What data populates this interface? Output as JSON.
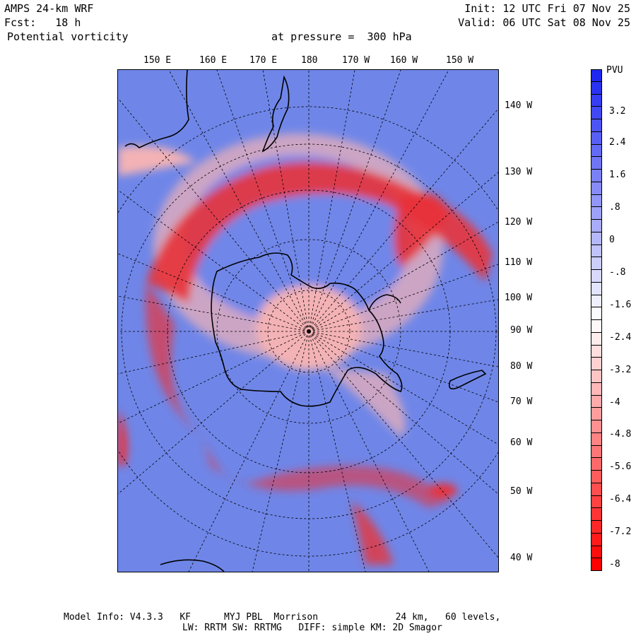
{
  "header": {
    "model": "AMPS 24-km WRF",
    "fcst": "Fcst:   18 h",
    "field": "Potential vorticity",
    "level": "at pressure =  300 hPa",
    "init": "Init: 12 UTC Fri 07 Nov 25",
    "valid": "Valid: 06 UTC Sat 08 Nov 25"
  },
  "top_lon_labels": [
    "150 E",
    "160 E",
    "170 E",
    "180",
    "170 W",
    "160 W",
    "150 W"
  ],
  "right_lon_labels": [
    "140 W",
    "130 W",
    "120 W",
    "110 W",
    "100 W",
    "90 W",
    "80 W",
    "70 W",
    "60 W",
    "50 W",
    "40 W"
  ],
  "colorbar": {
    "unit": "PVU",
    "ticks": [
      "3.2",
      "2.4",
      "1.6",
      ".8",
      "0",
      "-.8",
      "-1.6",
      "-2.4",
      "-3.2",
      "-4",
      "-4.8",
      "-5.6",
      "-6.4",
      "-7.2",
      "-8"
    ],
    "top_color": "#1f2bf0",
    "bottom_color": "#ff0000"
  },
  "footer": {
    "line1": "Model Info: V4.3.3   KF      MYJ PBL  Morrison              24 km,   60 levels,",
    "line2": "LW: RRTM SW: RRTMG   DIFF: simple KM: 2D Smagor"
  },
  "colors": {
    "ocean_bg": "#6f86e8",
    "pv_red": "#e8333a",
    "pv_pink": "#f3b2b5",
    "coast": "#000000"
  }
}
